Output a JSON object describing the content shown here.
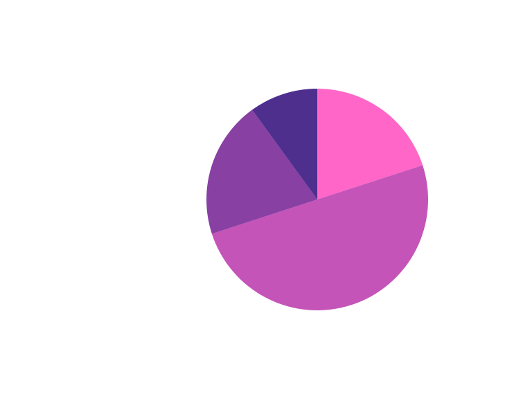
{
  "chart_data": {
    "type": "pie",
    "title": "",
    "start_angle_deg": 90,
    "direction": "clockwise",
    "slices": [
      {
        "value": 20,
        "color": "#ff66c8"
      },
      {
        "value": 50,
        "color": "#c454b8"
      },
      {
        "value": 20,
        "color": "#8840a3"
      },
      {
        "value": 10,
        "color": "#4f2f8e"
      }
    ]
  }
}
